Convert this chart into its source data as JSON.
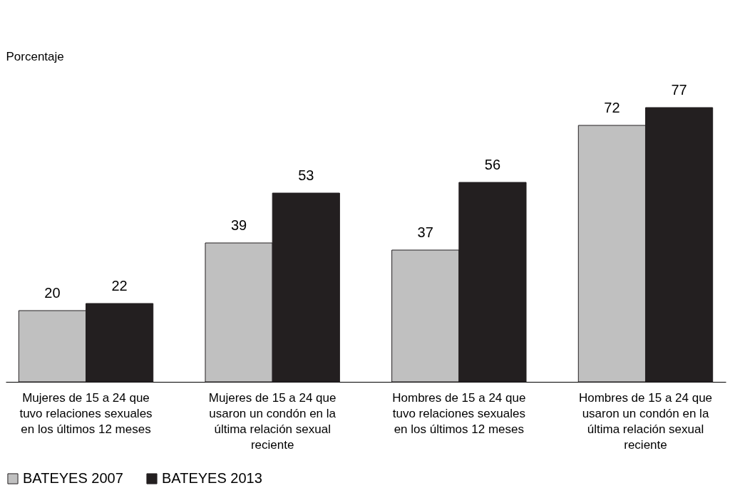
{
  "chart_data": {
    "type": "bar",
    "ylabel": "Porcentaje",
    "categories": [
      "Mujeres de 15 a 24 que tuvo relaciones sexuales en los últimos 12 meses",
      "Mujeres de 15 a 24 que usaron un condón en la última relación sexual reciente",
      "Hombres de 15 a 24 que tuvo relaciones sexuales en los últimos 12 meses",
      "Hombres de 15 a 24 que usaron un condón en la última relación sexual reciente"
    ],
    "series": [
      {
        "name": "BATEYES 2007",
        "color": "#c0c0c0",
        "values": [
          20,
          39,
          37,
          72
        ]
      },
      {
        "name": "BATEYES 2013",
        "color": "#231f20",
        "values": [
          22,
          53,
          56,
          77
        ]
      }
    ],
    "data_labels": true,
    "legend": "bottom",
    "tick_labels": "x"
  }
}
